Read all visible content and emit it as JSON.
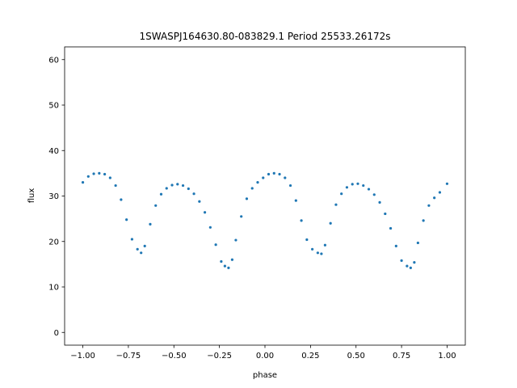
{
  "chart_data": {
    "type": "scatter",
    "title": "1SWASPJ164630.80-083829.1 Period 25533.26172s",
    "xlabel": "phase",
    "ylabel": "flux",
    "xlim": [
      -1.1,
      1.1
    ],
    "ylim": [
      -2.8,
      62.8
    ],
    "x_ticks": [
      -1.0,
      -0.75,
      -0.5,
      -0.25,
      0.0,
      0.25,
      0.5,
      0.75,
      1.0
    ],
    "x_tick_labels": [
      "−1.00",
      "−0.75",
      "−0.50",
      "−0.25",
      "0.00",
      "0.25",
      "0.50",
      "0.75",
      "1.00"
    ],
    "y_ticks": [
      0,
      10,
      20,
      30,
      40,
      50,
      60
    ],
    "y_tick_labels": [
      "0",
      "10",
      "20",
      "30",
      "40",
      "50",
      "60"
    ],
    "grid": false,
    "legend": "none",
    "point_color": "#1f77b4",
    "series": [
      {
        "x": [
          -1.0,
          -0.97,
          -0.94,
          -0.91,
          -0.88,
          -0.85,
          -0.82,
          -0.79,
          -0.76,
          -0.73,
          -0.7,
          -0.68,
          -0.66,
          -0.63,
          -0.6,
          -0.57,
          -0.54,
          -0.51,
          -0.48,
          -0.45,
          -0.42,
          -0.39,
          -0.36,
          -0.33,
          -0.3,
          -0.27,
          -0.24,
          -0.22,
          -0.2,
          -0.18,
          -0.16,
          -0.13,
          -0.1,
          -0.07,
          -0.04,
          -0.01,
          0.02,
          0.05,
          0.08,
          0.11,
          0.14,
          0.17,
          0.2,
          0.23,
          0.26,
          0.29,
          0.31,
          0.33,
          0.36,
          0.39,
          0.42,
          0.45,
          0.48,
          0.51,
          0.54,
          0.57,
          0.6,
          0.63,
          0.66,
          0.69,
          0.72,
          0.75,
          0.78,
          0.8,
          0.82,
          0.84,
          0.87,
          0.9,
          0.93,
          0.96,
          1.0
        ],
        "y": [
          33.0,
          34.3,
          34.9,
          35.0,
          34.8,
          34.0,
          32.3,
          29.2,
          24.8,
          20.5,
          18.3,
          17.5,
          19.0,
          23.8,
          27.9,
          30.4,
          31.7,
          32.4,
          32.6,
          32.3,
          31.6,
          30.5,
          28.8,
          26.4,
          23.1,
          19.3,
          15.6,
          14.6,
          14.2,
          16.0,
          20.3,
          25.5,
          29.4,
          31.7,
          33.0,
          34.0,
          34.8,
          35.0,
          34.8,
          34.0,
          32.3,
          29.0,
          24.6,
          20.4,
          18.3,
          17.5,
          17.3,
          19.2,
          24.0,
          28.1,
          30.5,
          31.9,
          32.6,
          32.7,
          32.3,
          31.5,
          30.3,
          28.6,
          26.1,
          22.9,
          19.0,
          15.8,
          14.6,
          14.2,
          15.4,
          19.7,
          24.6,
          27.9,
          29.6,
          30.8,
          32.7
        ]
      }
    ]
  }
}
